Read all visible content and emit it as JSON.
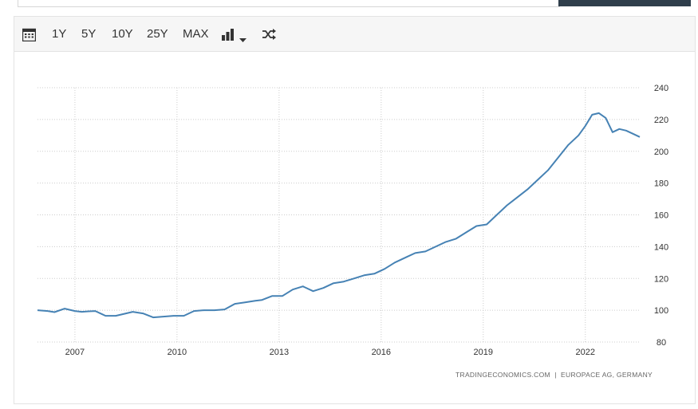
{
  "toolbar": {
    "range_buttons": [
      "1Y",
      "5Y",
      "10Y",
      "25Y",
      "MAX"
    ],
    "icons": [
      "calendar-icon",
      "bar-chart-icon",
      "chevron-down-icon",
      "shuffle-icon"
    ]
  },
  "colors": {
    "line": "#4682b4",
    "grid": "#cccccc",
    "toolbar_bg": "#f6f6f6",
    "header_button": "#2f3e4b"
  },
  "chart_data": {
    "type": "line",
    "title": "",
    "xlabel": "",
    "ylabel": "",
    "xlim": [
      2005.9,
      2023.6
    ],
    "ylim": [
      80,
      240
    ],
    "x_ticks": [
      "2007",
      "2010",
      "2013",
      "2016",
      "2019",
      "2022"
    ],
    "y_ticks": [
      "80",
      "100",
      "120",
      "140",
      "160",
      "180",
      "200",
      "220",
      "240"
    ],
    "grid": true,
    "y_axis_side": "right",
    "source_credit": "TRADINGECONOMICS.COM  |  EUROPACE AG, GERMANY",
    "series": [
      {
        "name": "",
        "x": [
          2005.9,
          2006.2,
          2006.4,
          2006.7,
          2007.0,
          2007.2,
          2007.4,
          2007.6,
          2007.9,
          2008.2,
          2008.5,
          2008.7,
          2009.0,
          2009.3,
          2009.6,
          2009.9,
          2010.2,
          2010.5,
          2010.8,
          2011.1,
          2011.4,
          2011.7,
          2012.0,
          2012.3,
          2012.5,
          2012.8,
          2013.1,
          2013.4,
          2013.7,
          2014.0,
          2014.3,
          2014.6,
          2014.9,
          2015.2,
          2015.5,
          2015.8,
          2016.1,
          2016.4,
          2016.7,
          2017.0,
          2017.3,
          2017.6,
          2017.9,
          2018.2,
          2018.5,
          2018.8,
          2019.1,
          2019.4,
          2019.7,
          2020.0,
          2020.3,
          2020.6,
          2020.9,
          2021.2,
          2021.5,
          2021.8,
          2022.0,
          2022.2,
          2022.4,
          2022.6,
          2022.8,
          2023.0,
          2023.2,
          2023.4,
          2023.6
        ],
        "values": [
          100,
          99.5,
          98.8,
          101,
          99.5,
          99,
          99.3,
          99.5,
          96.5,
          96.5,
          98,
          99,
          98,
          95.5,
          96,
          96.5,
          96.5,
          99.5,
          100,
          100,
          100.5,
          104,
          105,
          106,
          106.5,
          109,
          109,
          113,
          115,
          112,
          114,
          117,
          118,
          120,
          122,
          123,
          126,
          130,
          133,
          136,
          137,
          140,
          143,
          145,
          149,
          153,
          154,
          160,
          166,
          171,
          176,
          182,
          188,
          196,
          204,
          210,
          216,
          223,
          224,
          221,
          212,
          214,
          213,
          211,
          209
        ]
      }
    ]
  }
}
